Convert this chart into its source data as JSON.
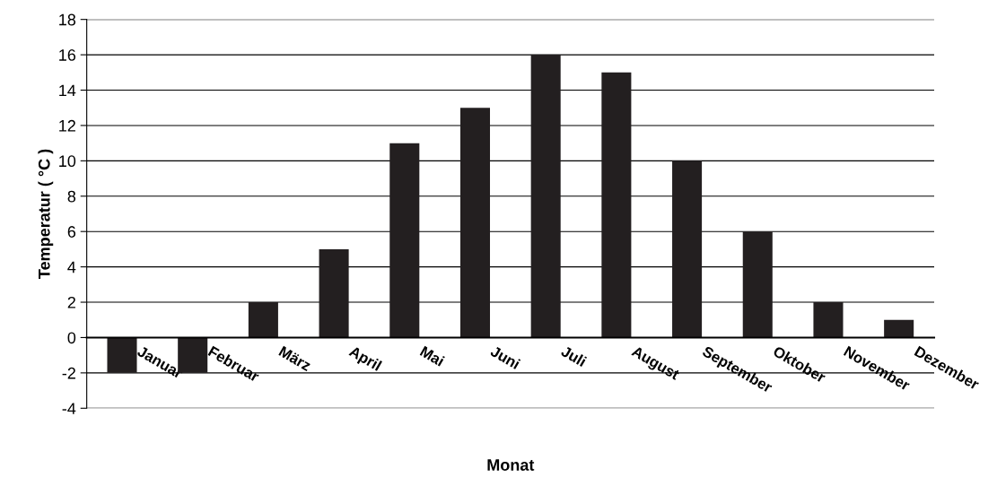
{
  "chart_data": {
    "type": "bar",
    "xlabel": "Monat",
    "ylabel": "Temperatur ( °C )",
    "categories": [
      "Januar",
      "Februar",
      "März",
      "April",
      "Mai",
      "Juni",
      "Juli",
      "August",
      "September",
      "Oktober",
      "November",
      "Dezember"
    ],
    "values": [
      -2,
      -2,
      2,
      5,
      11,
      13,
      16,
      15,
      10,
      6,
      2,
      1
    ],
    "color": "#231f20",
    "ylim": [
      -4,
      18
    ],
    "yticks": [
      -4,
      -2,
      0,
      2,
      4,
      6,
      8,
      10,
      12,
      14,
      16,
      18
    ],
    "grid": "y"
  }
}
